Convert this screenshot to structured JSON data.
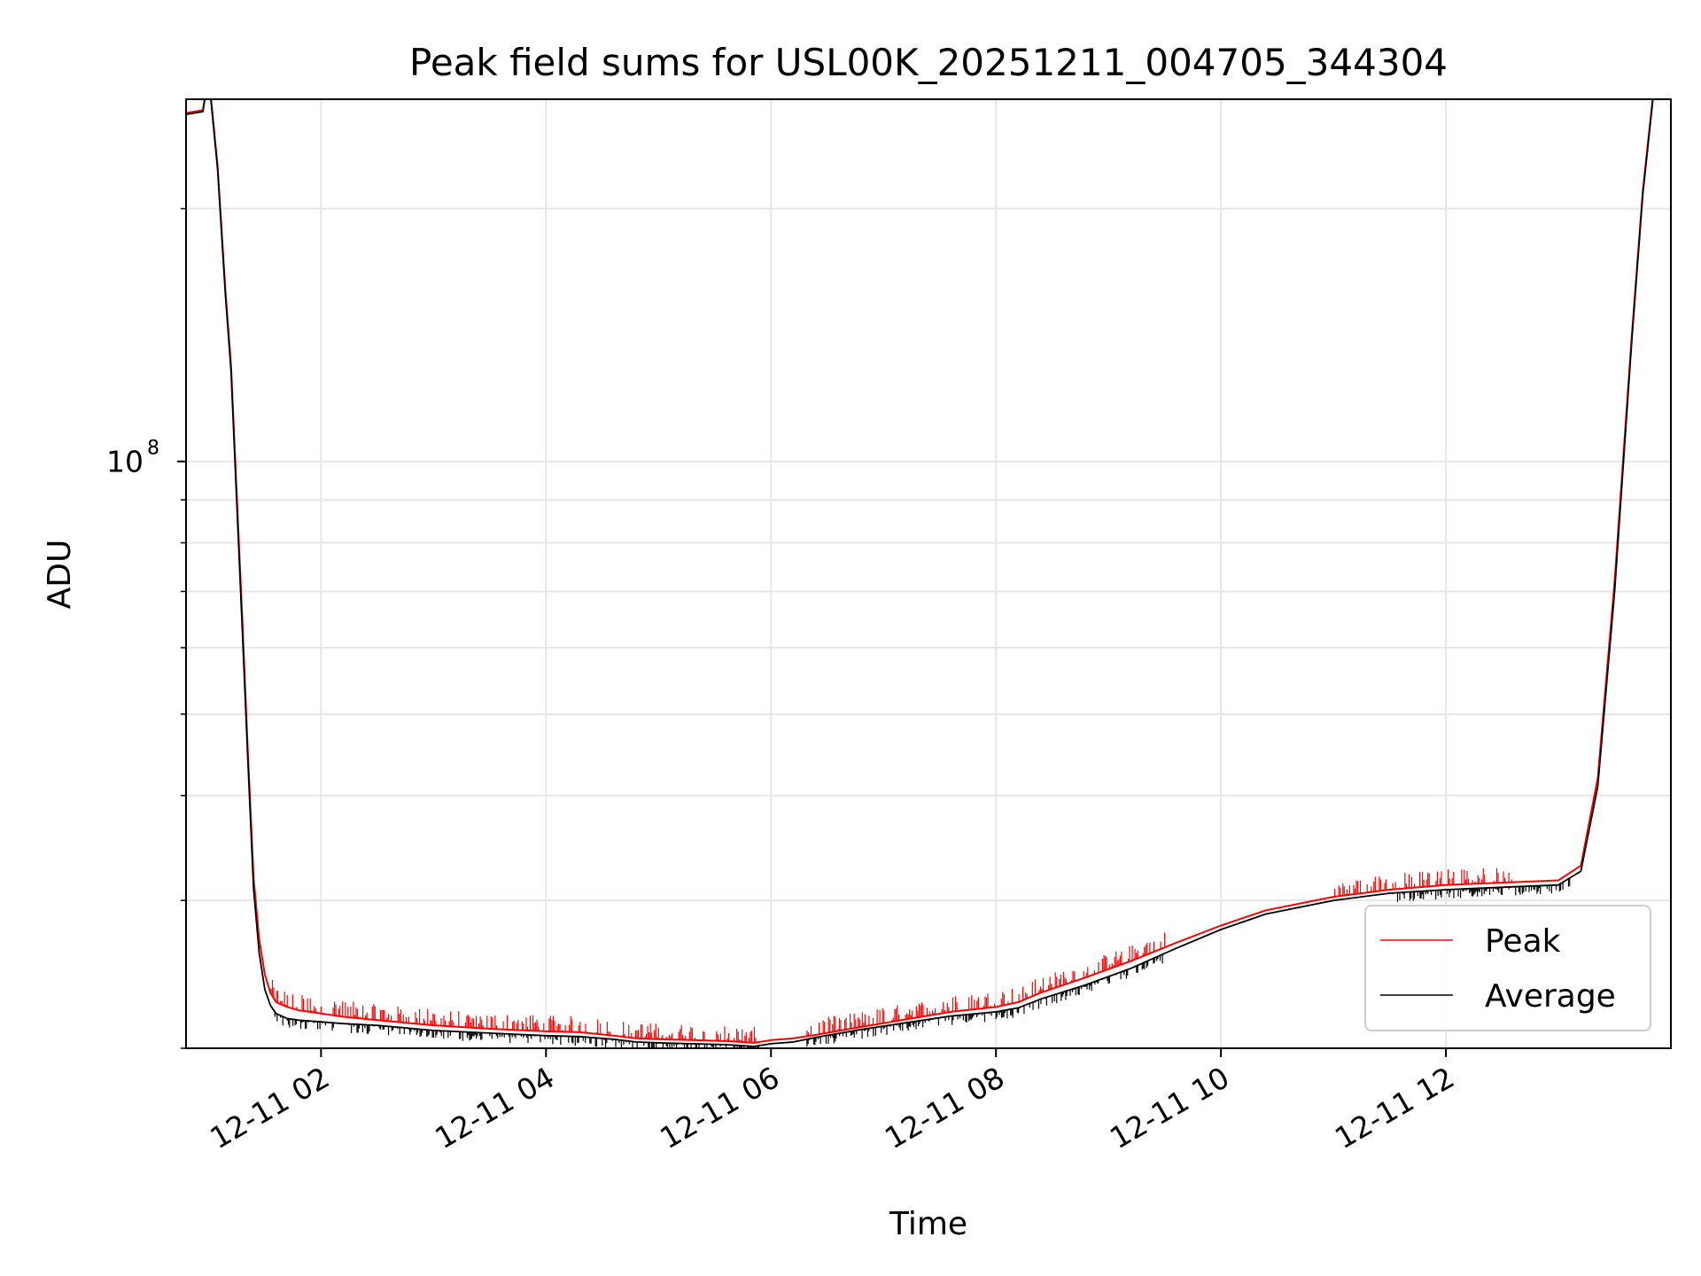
{
  "chart_data": {
    "type": "line",
    "title": "Peak field sums for USL00K_20251211_004705_344304",
    "xlabel": "Time",
    "ylabel": "ADU",
    "yscale": "log",
    "ylim": [
      20000000,
      270000000
    ],
    "xlim_hours": [
      0.8,
      14.0
    ],
    "grid": true,
    "legend_position": "lower right",
    "x_ticks": [
      {
        "hour": 2,
        "label": "12-11 02"
      },
      {
        "hour": 4,
        "label": "12-11 04"
      },
      {
        "hour": 6,
        "label": "12-11 06"
      },
      {
        "hour": 8,
        "label": "12-11 08"
      },
      {
        "hour": 10,
        "label": "12-11 10"
      },
      {
        "hour": 12,
        "label": "12-11 12"
      }
    ],
    "y_major_ticks": [
      {
        "value": 100000000,
        "base": "10",
        "exponent": "8"
      }
    ],
    "y_minor_ticks": [
      20000000,
      30000000,
      40000000,
      50000000,
      60000000,
      70000000,
      80000000,
      90000000,
      200000000
    ],
    "series": [
      {
        "name": "Peak",
        "color": "#ff0000",
        "x_hours": [
          0.8,
          0.95,
          1.0,
          1.08,
          1.15,
          1.2,
          1.25,
          1.3,
          1.35,
          1.4,
          1.45,
          1.5,
          1.55,
          1.6,
          1.7,
          1.8,
          2.0,
          2.2,
          2.5,
          3.0,
          3.5,
          4.0,
          4.3,
          4.6,
          4.8,
          5.0,
          5.3,
          5.6,
          5.85,
          6.0,
          6.2,
          6.4,
          6.8,
          7.2,
          7.6,
          8.0,
          8.2,
          8.4,
          8.8,
          9.2,
          9.6,
          10.0,
          10.4,
          11.0,
          11.5,
          12.0,
          12.5,
          13.0,
          13.2,
          13.35,
          13.5,
          13.65,
          13.75,
          13.85
        ],
        "values": [
          260000000,
          262000000,
          290000000,
          225000000,
          160000000,
          130000000,
          92000000,
          65000000,
          45000000,
          32000000,
          27000000,
          24500000,
          23300000,
          22700000,
          22400000,
          22200000,
          22000000,
          21800000,
          21600000,
          21300000,
          21100000,
          20950000,
          20900000,
          20700000,
          20550000,
          20500000,
          20450000,
          20400000,
          20300000,
          20450000,
          20550000,
          20750000,
          21200000,
          21650000,
          22100000,
          22400000,
          22700000,
          23300000,
          24300000,
          25400000,
          26700000,
          28000000,
          29200000,
          30300000,
          30900000,
          31300000,
          31500000,
          31700000,
          33000000,
          42000000,
          72000000,
          140000000,
          210000000,
          280000000
        ],
        "spike_ranges_hours": [
          [
            1.55,
            5.9
          ],
          [
            6.3,
            9.5
          ],
          [
            11.0,
            12.6
          ]
        ]
      },
      {
        "name": "Average",
        "color": "#000000",
        "x_hours": [
          0.8,
          0.95,
          1.0,
          1.08,
          1.15,
          1.2,
          1.25,
          1.3,
          1.35,
          1.4,
          1.45,
          1.5,
          1.55,
          1.6,
          1.7,
          1.8,
          2.0,
          2.2,
          2.5,
          3.0,
          3.5,
          4.0,
          4.3,
          4.6,
          4.8,
          5.0,
          5.3,
          5.6,
          5.85,
          6.0,
          6.2,
          6.4,
          6.8,
          7.2,
          7.6,
          8.0,
          8.2,
          8.4,
          8.8,
          9.2,
          9.6,
          10.0,
          10.4,
          11.0,
          11.5,
          12.0,
          12.5,
          13.0,
          13.2,
          13.35,
          13.5,
          13.65,
          13.75,
          13.85
        ],
        "values": [
          259000000,
          261000000,
          288000000,
          223000000,
          158000000,
          128000000,
          90000000,
          63000000,
          44000000,
          31000000,
          26000000,
          23500000,
          22500000,
          22000000,
          21700000,
          21600000,
          21500000,
          21400000,
          21300000,
          21000000,
          20850000,
          20700000,
          20650000,
          20500000,
          20350000,
          20300000,
          20250000,
          20200000,
          20100000,
          20250000,
          20350000,
          20600000,
          21050000,
          21450000,
          21850000,
          22100000,
          22350000,
          22900000,
          23800000,
          24900000,
          26300000,
          27700000,
          28900000,
          30000000,
          30600000,
          30900000,
          31100000,
          31300000,
          32500000,
          41000000,
          70000000,
          138000000,
          208000000,
          278000000
        ],
        "noise_ranges_hours": [
          [
            1.55,
            5.9
          ],
          [
            6.3,
            9.5
          ],
          [
            11.5,
            13.1
          ]
        ]
      }
    ]
  }
}
